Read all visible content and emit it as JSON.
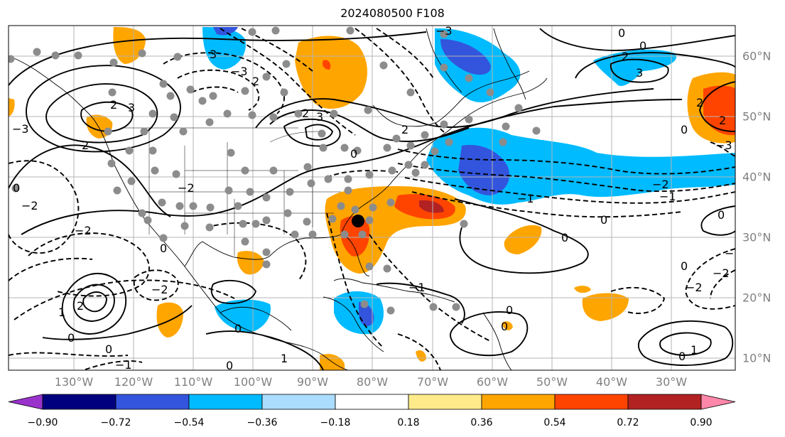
{
  "title": "2024080500 F108",
  "chart_data": {
    "type": "heatmap",
    "title": "2024080500 F108",
    "map_extent": {
      "lon": [
        -138,
        -16
      ],
      "lat": [
        7,
        65
      ]
    },
    "x_ticks": [
      "130°W",
      "120°W",
      "110°W",
      "100°W",
      "90°W",
      "80°W",
      "70°W",
      "60°W",
      "50°W",
      "40°W",
      "30°W"
    ],
    "y_ticks": [
      "60°N",
      "50°N",
      "40°N",
      "30°N",
      "20°N",
      "10°N"
    ],
    "grid": true,
    "colorbar": {
      "orientation": "horizontal",
      "extend": "both",
      "levels": [
        "−0.90",
        "−0.72",
        "−0.54",
        "−0.36",
        "−0.18",
        "0.18",
        "0.36",
        "0.54",
        "0.72",
        "0.90"
      ],
      "colors": [
        "#9933cc",
        "#00007f",
        "#3355dd",
        "#00bbff",
        "#aaddff",
        "#ffffff",
        "#ffeb8a",
        "#ffa500",
        "#ff4400",
        "#b22222",
        "#ff88aa"
      ]
    },
    "contour_labels": [
      "0",
      "1",
      "2",
      "3",
      "−1",
      "−2",
      "−3"
    ],
    "marker": {
      "lon": -80,
      "lat": 33
    }
  }
}
